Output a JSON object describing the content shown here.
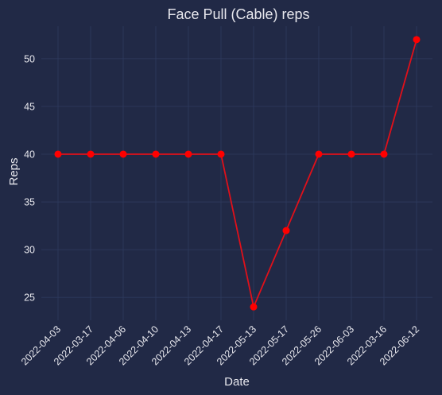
{
  "chart_data": {
    "type": "line",
    "title": "Face Pull (Cable) reps",
    "xlabel": "Date",
    "ylabel": "Reps",
    "categories": [
      "2022-04-03",
      "2022-03-17",
      "2022-04-06",
      "2022-04-10",
      "2022-04-13",
      "2022-04-17",
      "2022-05-13",
      "2022-05-17",
      "2022-05-26",
      "2022-06-03",
      "2022-03-16",
      "2022-06-12"
    ],
    "series": [
      {
        "values": [
          40,
          40,
          40,
          40,
          40,
          40,
          24,
          32,
          40,
          40,
          40,
          52
        ]
      }
    ],
    "yticks": [
      25,
      30,
      35,
      40,
      45,
      50
    ],
    "ylim": [
      22.6,
      53.4
    ],
    "grid": true,
    "colors": {
      "background": "#212946",
      "line": "#e0101a",
      "marker": "#ff0000",
      "grid": "#2e3a5e",
      "text": "#e8e8ee"
    }
  }
}
